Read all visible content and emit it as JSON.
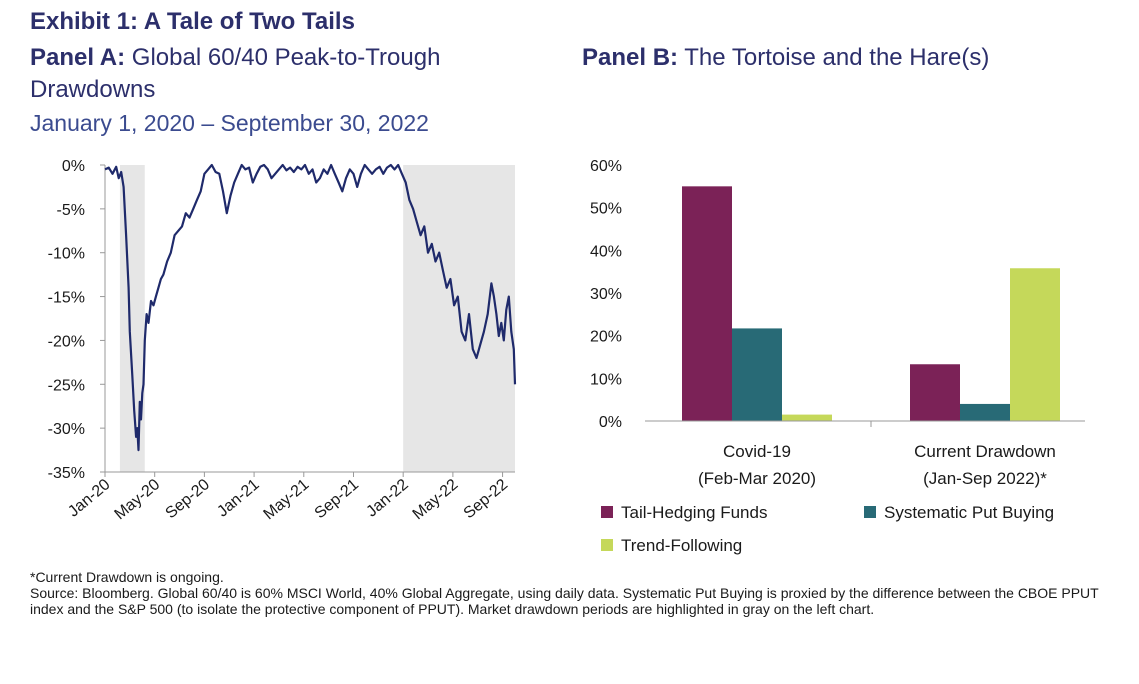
{
  "header": {
    "exhibit": "Exhibit 1: A Tale of Two Tails",
    "panel_a_prefix": "Panel A:",
    "panel_a_title": " Global 60/40 Peak-to-Trough Drawdowns",
    "panel_a_range": "January 1, 2020 – September 30, 2022",
    "panel_b_prefix": "Panel B:",
    "panel_b_title": " The Tortoise and the Hare(s)"
  },
  "colors": {
    "line": "#1f2a6b",
    "shade": "#e6e6e6",
    "tail_hedging": "#7b2257",
    "systematic_put": "#286a76",
    "trend_following": "#c5d85a"
  },
  "chart_data": [
    {
      "type": "line",
      "title": "Global 60/40 Peak-to-Trough Drawdowns",
      "ylim": [
        -35,
        0
      ],
      "yticks": [
        "0%",
        "-5%",
        "-10%",
        "-15%",
        "-20%",
        "-25%",
        "-30%",
        "-35%"
      ],
      "ytick_values": [
        0,
        -5,
        -10,
        -15,
        -20,
        -25,
        -30,
        -35
      ],
      "xticks": [
        "Jan-20",
        "May-20",
        "Sep-20",
        "Jan-21",
        "May-21",
        "Sep-21",
        "Jan-22",
        "May-22",
        "Sep-22"
      ],
      "xtick_months": [
        0,
        4,
        8,
        12,
        16,
        20,
        24,
        28,
        32
      ],
      "x_unit": "months since Jan-2020",
      "shaded_periods": [
        [
          1.2,
          3.2
        ],
        [
          24.0,
          33.0
        ]
      ],
      "series": [
        {
          "x": [
            0,
            0.3,
            0.6,
            0.9,
            1.1,
            1.3,
            1.5,
            1.7,
            1.9,
            2.0,
            2.2,
            2.35,
            2.5,
            2.6,
            2.7,
            2.8,
            2.9,
            3.0,
            3.1,
            3.2,
            3.35,
            3.5,
            3.7,
            3.9,
            4.1,
            4.3,
            4.5,
            4.7,
            5.0,
            5.3,
            5.6,
            5.9,
            6.2,
            6.5,
            6.8,
            7.1,
            7.4,
            7.7,
            8.0,
            8.3,
            8.6,
            8.9,
            9.2,
            9.5,
            9.8,
            10.1,
            10.4,
            10.7,
            11.0,
            11.3,
            11.6,
            11.9,
            12.2,
            12.5,
            12.8,
            13.1,
            13.4,
            13.7,
            14.0,
            14.3,
            14.6,
            14.9,
            15.2,
            15.5,
            15.8,
            16.1,
            16.4,
            16.7,
            17.0,
            17.3,
            17.6,
            17.9,
            18.2,
            18.5,
            18.8,
            19.1,
            19.4,
            19.7,
            20.0,
            20.3,
            20.6,
            20.9,
            21.2,
            21.5,
            21.8,
            22.1,
            22.4,
            22.7,
            23.0,
            23.3,
            23.6,
            23.9,
            24.2,
            24.5,
            24.8,
            25.1,
            25.4,
            25.7,
            26.0,
            26.3,
            26.6,
            26.9,
            27.2,
            27.5,
            27.8,
            28.1,
            28.4,
            28.7,
            29.0,
            29.3,
            29.6,
            29.9,
            30.2,
            30.5,
            30.8,
            31.1,
            31.3,
            31.5,
            31.7,
            31.9,
            32.1,
            32.3,
            32.5,
            32.7,
            32.9,
            33.0
          ],
          "y": [
            -0.5,
            -0.3,
            -1.0,
            -0.2,
            -1.5,
            -0.8,
            -2.5,
            -8.0,
            -14.0,
            -19.0,
            -24.0,
            -28.0,
            -31.0,
            -30.0,
            -32.5,
            -27.0,
            -29.0,
            -26.0,
            -25.0,
            -20.0,
            -17.0,
            -18.0,
            -15.5,
            -16.0,
            -15.0,
            -14.0,
            -13.0,
            -12.5,
            -11.0,
            -10.0,
            -8.0,
            -7.5,
            -7.0,
            -5.5,
            -6.0,
            -5.0,
            -4.0,
            -3.0,
            -1.0,
            -0.5,
            0.0,
            -0.8,
            -1.0,
            -3.0,
            -5.5,
            -3.5,
            -2.0,
            -1.0,
            0.0,
            -0.5,
            -0.3,
            -2.0,
            -1.0,
            -0.2,
            0.0,
            -0.5,
            -1.5,
            -1.0,
            -0.5,
            0.0,
            -0.6,
            -0.3,
            -0.8,
            -0.2,
            -0.5,
            0.0,
            -1.0,
            -0.5,
            -2.0,
            -1.5,
            -0.5,
            -1.0,
            0.0,
            -1.0,
            -2.0,
            -3.0,
            -1.5,
            -0.5,
            -1.0,
            -2.5,
            -1.0,
            0.0,
            -0.5,
            -1.0,
            -0.5,
            -0.2,
            -1.0,
            -0.3,
            0.0,
            -0.5,
            0.0,
            -1.0,
            -2.0,
            -4.0,
            -5.0,
            -6.5,
            -8.0,
            -7.0,
            -10.0,
            -9.0,
            -11.0,
            -10.0,
            -12.0,
            -14.0,
            -13.0,
            -16.0,
            -15.0,
            -19.0,
            -20.0,
            -17.0,
            -21.0,
            -22.0,
            -20.5,
            -19.0,
            -17.0,
            -13.5,
            -15.0,
            -17.0,
            -19.5,
            -18.0,
            -20.0,
            -16.5,
            -15.0,
            -19.0,
            -21.0,
            -25.0
          ]
        }
      ]
    },
    {
      "type": "bar",
      "title": "The Tortoise and the Hare(s)",
      "categories": [
        [
          "Covid-19",
          "(Feb-Mar 2020)"
        ],
        [
          "Current Drawdown",
          "(Jan-Sep 2022)*"
        ]
      ],
      "ylim": [
        0,
        60
      ],
      "yticks": [
        "60%",
        "50%",
        "40%",
        "30%",
        "20%",
        "10%",
        "0%"
      ],
      "ytick_values": [
        60,
        50,
        40,
        30,
        20,
        10,
        0
      ],
      "legend_position": "bottom",
      "series": [
        {
          "name": "Tail-Hedging Funds",
          "values": [
            55,
            13.3
          ]
        },
        {
          "name": "Systematic Put Buying",
          "values": [
            21.7,
            4.0
          ]
        },
        {
          "name": "Trend-Following",
          "values": [
            1.5,
            35.8
          ]
        }
      ]
    }
  ],
  "footnote": {
    "line1": "*Current Drawdown is ongoing.",
    "line2": "Source: Bloomberg. Global 60/40 is 60% MSCI World, 40% Global Aggregate, using daily data. Systematic Put Buying is proxied by the difference between the CBOE PPUT index and the S&P 500 (to isolate the protective component of PPUT). Market drawdown periods are highlighted in gray on the left chart."
  }
}
